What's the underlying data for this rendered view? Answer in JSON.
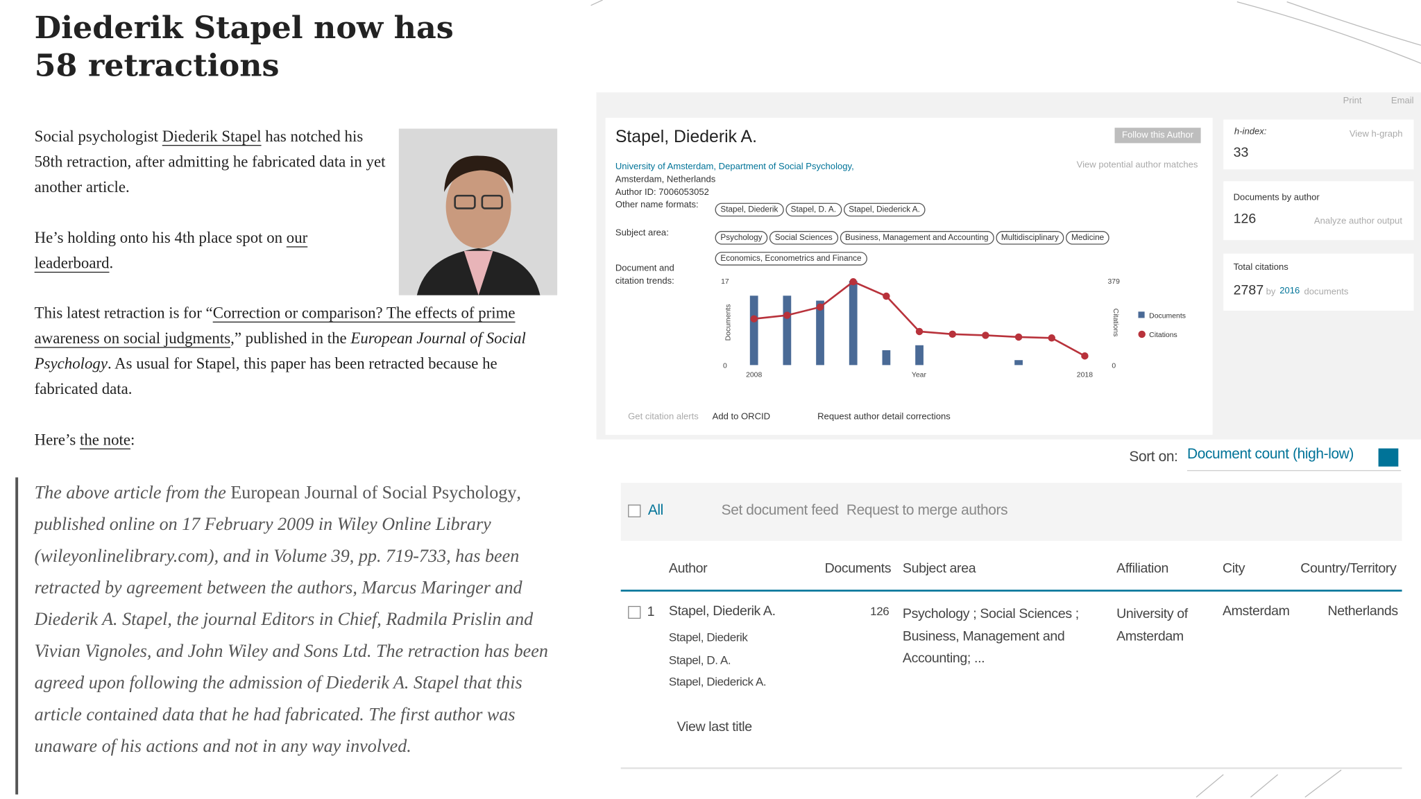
{
  "article": {
    "title": "Diederik Stapel now has 58 retractions",
    "paragraphs": [
      [
        {
          "text": "Social psychologist "
        },
        {
          "text": "Diederik Stapel",
          "link": true
        },
        {
          "text": " has notched his 58th retraction, after admitting he fabricated data in yet another article."
        }
      ],
      [
        {
          "text": "He’s holding onto his 4th place spot on "
        },
        {
          "text": "our leaderboard",
          "link": true
        },
        {
          "text": "."
        }
      ],
      [
        {
          "text": "This latest retraction is for “"
        },
        {
          "text": "Correction or comparison? The effects of prime awareness on social judgments",
          "link": true
        },
        {
          "text": ",” published in the "
        },
        {
          "text": "European Journal of Social Psychology",
          "italic": true
        },
        {
          "text": ". As usual for Stapel, this paper has been retracted because he fabricated data."
        }
      ],
      [
        {
          "text": "Here’s "
        },
        {
          "text": "the note",
          "link": true
        },
        {
          "text": ":"
        }
      ]
    ],
    "quote": [
      {
        "text": "The above article from the "
      },
      {
        "text": "European Journal of Social",
        "roman": true
      },
      {
        "text": " "
      },
      {
        "text": "Psychology",
        "roman": true
      },
      {
        "text": ", published online on 17 February 2009 in Wiley Online Library (wileyonlinelibrary.com), and in Volume 39, pp. 719-733, has been retracted by agreement between the authors, Marcus Maringer and Diederik A. Stapel, the journal Editors in Chief, Radmila Prislin and Vivian Vignoles, and John Wiley and Sons Ltd. The retraction has been agreed upon following the admission of Diederik A. Stapel that this article contained data that he had fabricated. The first author was unaware of his actions and not in any way involved."
      }
    ]
  },
  "profile": {
    "print": "Print",
    "email": "Email",
    "name": "Stapel, Diederik A.",
    "follow": "Follow this Author",
    "affiliation": "University of Amsterdam, Department of Social Psychology,",
    "location": "Amsterdam, Netherlands",
    "author_id": "Author ID: 7006053052",
    "matches": "View potential author matches",
    "other_names_label": "Other name formats:",
    "other_names": [
      "Stapel, Diederik",
      "Stapel, D. A.",
      "Stapel, Diederick A."
    ],
    "subject_label": "Subject area:",
    "subjects": [
      "Psychology",
      "Social Sciences",
      "Business, Management and Accounting",
      "Multidisciplinary",
      "Medicine",
      "Economics, Econometrics and Finance"
    ],
    "trends_label": "Document and citation trends:",
    "actions": [
      "Get citation alerts",
      "Add to ORCID",
      "Request author detail corrections"
    ]
  },
  "metrics": {
    "h_label": "h-index:",
    "h_graph": "View h-graph",
    "h_index": 33,
    "docs_label": "Documents by author",
    "documents": 126,
    "analyze": "Analyze author output",
    "cit_label": "Total citations",
    "citations": 2787,
    "by": "by",
    "cit_docs": 2016,
    "cit_docs_label": "documents"
  },
  "chart_data": {
    "type": "bar",
    "categories": [
      "2008",
      null,
      null,
      null,
      null,
      null,
      null,
      null,
      null,
      null,
      "2018"
    ],
    "x_label": "Year",
    "y_label": "Documents",
    "y2_label": "Citations",
    "ylim": [
      0,
      17
    ],
    "yticks": [
      0,
      17
    ],
    "y2lim": [
      0,
      379
    ],
    "y2ticks": [
      0,
      379
    ],
    "series": [
      {
        "name": "Documents",
        "type": "bar",
        "color": "#4a6a96",
        "values": [
          14,
          14,
          13,
          17,
          3,
          4,
          0,
          0,
          1,
          0,
          0
        ]
      },
      {
        "name": "Citations",
        "type": "line",
        "axis": "y2",
        "color": "#b8323b",
        "values": [
          208,
          224,
          261,
          375,
          310,
          151,
          139,
          134,
          126,
          122,
          41
        ]
      }
    ]
  },
  "results": {
    "sort_label": "Sort on:",
    "sort_value": "Document count (high-low)",
    "all": "All",
    "feed": "Set document feed",
    "merge": "Request to merge authors",
    "headers": [
      "Author",
      "Documents",
      "Subject area",
      "Affiliation",
      "City",
      "Country/Territory"
    ],
    "row": {
      "index": "1",
      "name": "Stapel, Diederik A.",
      "variants": [
        "Stapel, Diederik",
        "Stapel, D. A.",
        "Stapel, Diederick A."
      ],
      "documents": 126,
      "subject": "Psychology ; Social Sciences ; Business, Management and Accounting; ...",
      "affiliation": "University of Amsterdam",
      "city": "Amsterdam",
      "country": "Netherlands"
    },
    "view_last": "View last title"
  }
}
